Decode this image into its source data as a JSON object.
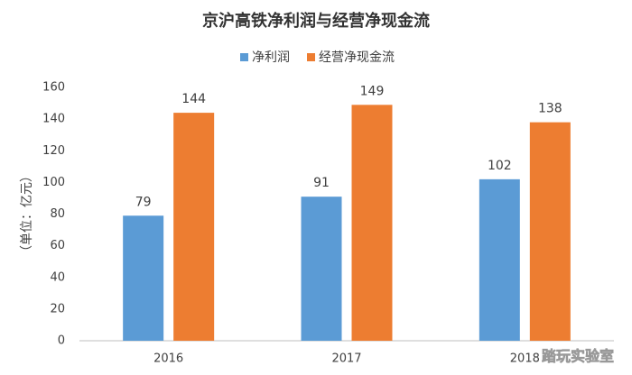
{
  "chart_data": {
    "type": "bar",
    "title": "京沪高铁净利润与经营净现金流",
    "y_label": "（单位：亿元）",
    "categories": [
      "2016",
      "2017",
      "2018"
    ],
    "series": [
      {
        "name": "净利润",
        "color": "#5b9bd5",
        "values": [
          79,
          91,
          102
        ]
      },
      {
        "name": "经营净现金流",
        "color": "#ed7d31",
        "values": [
          144,
          149,
          138
        ]
      }
    ],
    "ylim": [
      0,
      160
    ],
    "yticks": [
      0,
      20,
      40,
      60,
      80,
      100,
      120,
      140,
      160
    ],
    "grid": false,
    "legend": "top"
  },
  "watermark": "踏玩实验室"
}
